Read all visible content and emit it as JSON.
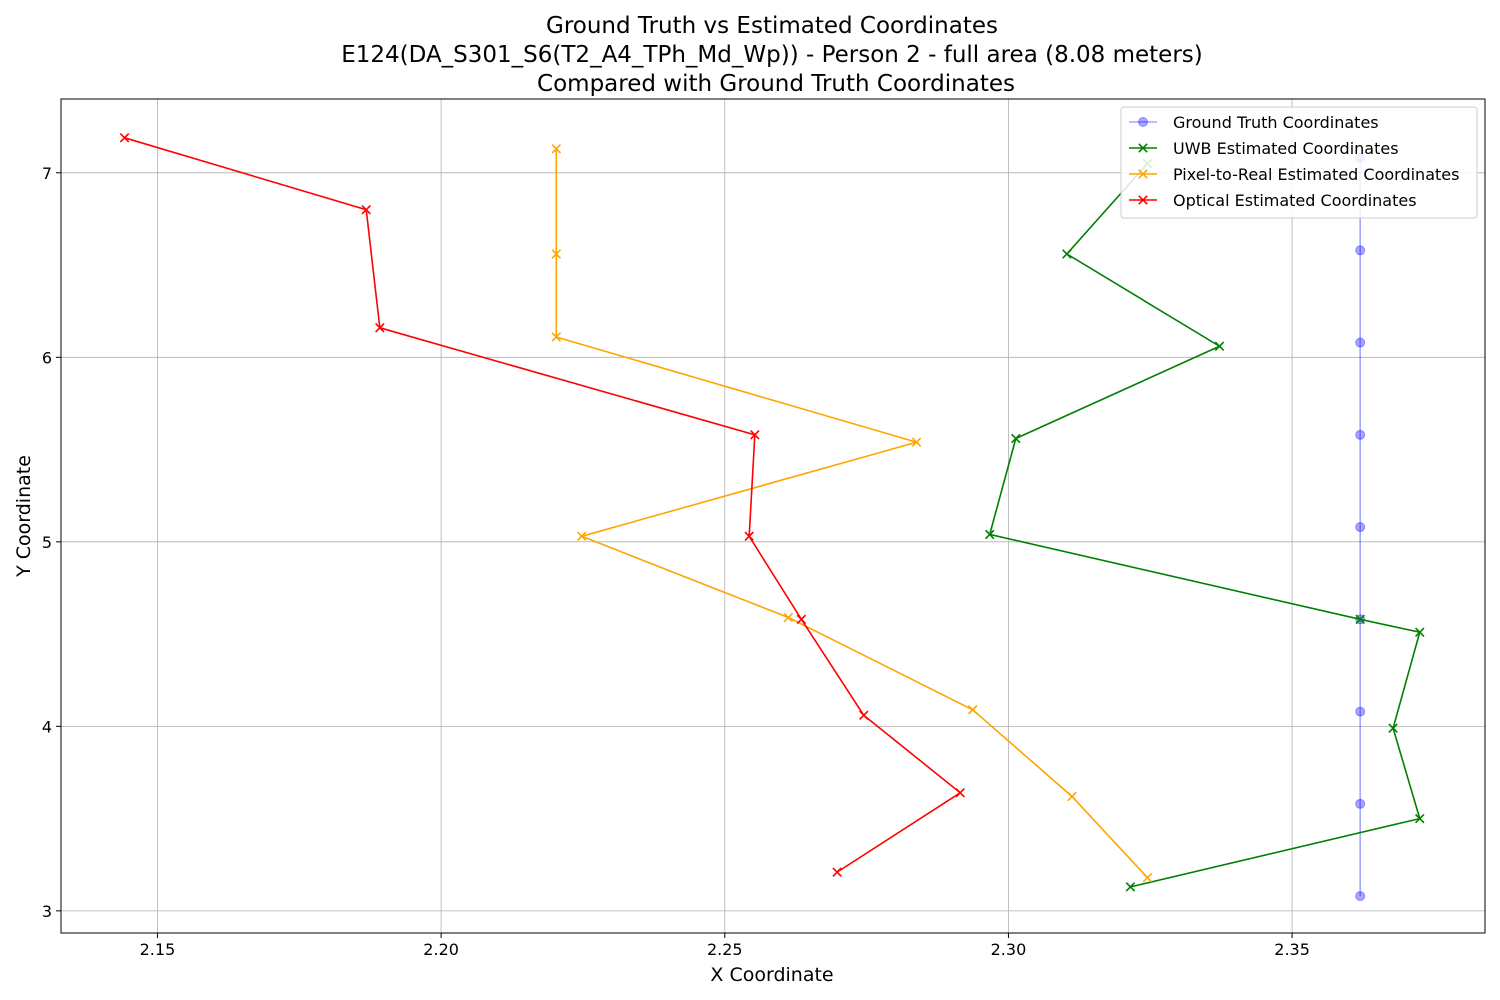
{
  "chart_data": {
    "type": "line",
    "title_lines": [
      "Ground Truth vs Estimated Coordinates",
      "E124(DA_S301_S6(T2_A4_TPh_Md_Wp)) - Person 2 - full area (8.08 meters)",
      "Compared with Ground Truth Coordinates"
    ],
    "xlabel": "X Coordinate",
    "ylabel": "Y Coordinate",
    "xlim": [
      2.133,
      2.384
    ],
    "ylim": [
      2.88,
      7.4
    ],
    "xticks": [
      2.15,
      2.2,
      2.25,
      2.3,
      2.35
    ],
    "xtick_labels": [
      "2.15",
      "2.20",
      "2.25",
      "2.30",
      "2.35"
    ],
    "yticks": [
      3,
      4,
      5,
      6,
      7
    ],
    "ytick_labels": [
      "3",
      "4",
      "5",
      "6",
      "7"
    ],
    "grid": true,
    "legend_position": "upper right",
    "series": [
      {
        "name": "Ground Truth Coordinates",
        "color": "#0000ff",
        "marker": "circle",
        "opacity": 0.35,
        "x": [
          2.362,
          2.362,
          2.362,
          2.362,
          2.362,
          2.362,
          2.362,
          2.362,
          2.362
        ],
        "y": [
          3.08,
          3.58,
          4.08,
          4.58,
          5.08,
          5.58,
          6.08,
          6.58,
          7.08
        ]
      },
      {
        "name": "UWB Estimated Coordinates",
        "color": "#008000",
        "marker": "x",
        "opacity": 1,
        "x": [
          2.3215,
          2.3725,
          2.3678,
          2.3725,
          2.362,
          2.2967,
          2.3013,
          2.3372,
          2.3103,
          2.3245
        ],
        "y": [
          3.13,
          3.5,
          3.99,
          4.51,
          4.58,
          5.04,
          5.56,
          6.06,
          6.56,
          7.05
        ]
      },
      {
        "name": "Pixel-to-Real Estimated Coordinates",
        "color": "#ffa500",
        "marker": "x",
        "opacity": 1,
        "x": [
          2.3245,
          2.3112,
          2.2937,
          2.2612,
          2.2248,
          2.2838,
          2.2203,
          2.2203,
          2.2203
        ],
        "y": [
          3.18,
          3.62,
          4.09,
          4.59,
          5.03,
          5.54,
          6.11,
          6.56,
          7.13
        ]
      },
      {
        "name": "Optical Estimated Coordinates",
        "color": "#ff0000",
        "marker": "x",
        "opacity": 1,
        "x": [
          2.2698,
          2.2915,
          2.2745,
          2.2635,
          2.2543,
          2.2553,
          2.1892,
          2.1868,
          2.1442
        ],
        "y": [
          3.21,
          3.64,
          4.06,
          4.58,
          5.03,
          5.58,
          6.16,
          6.8,
          7.19
        ]
      }
    ]
  }
}
